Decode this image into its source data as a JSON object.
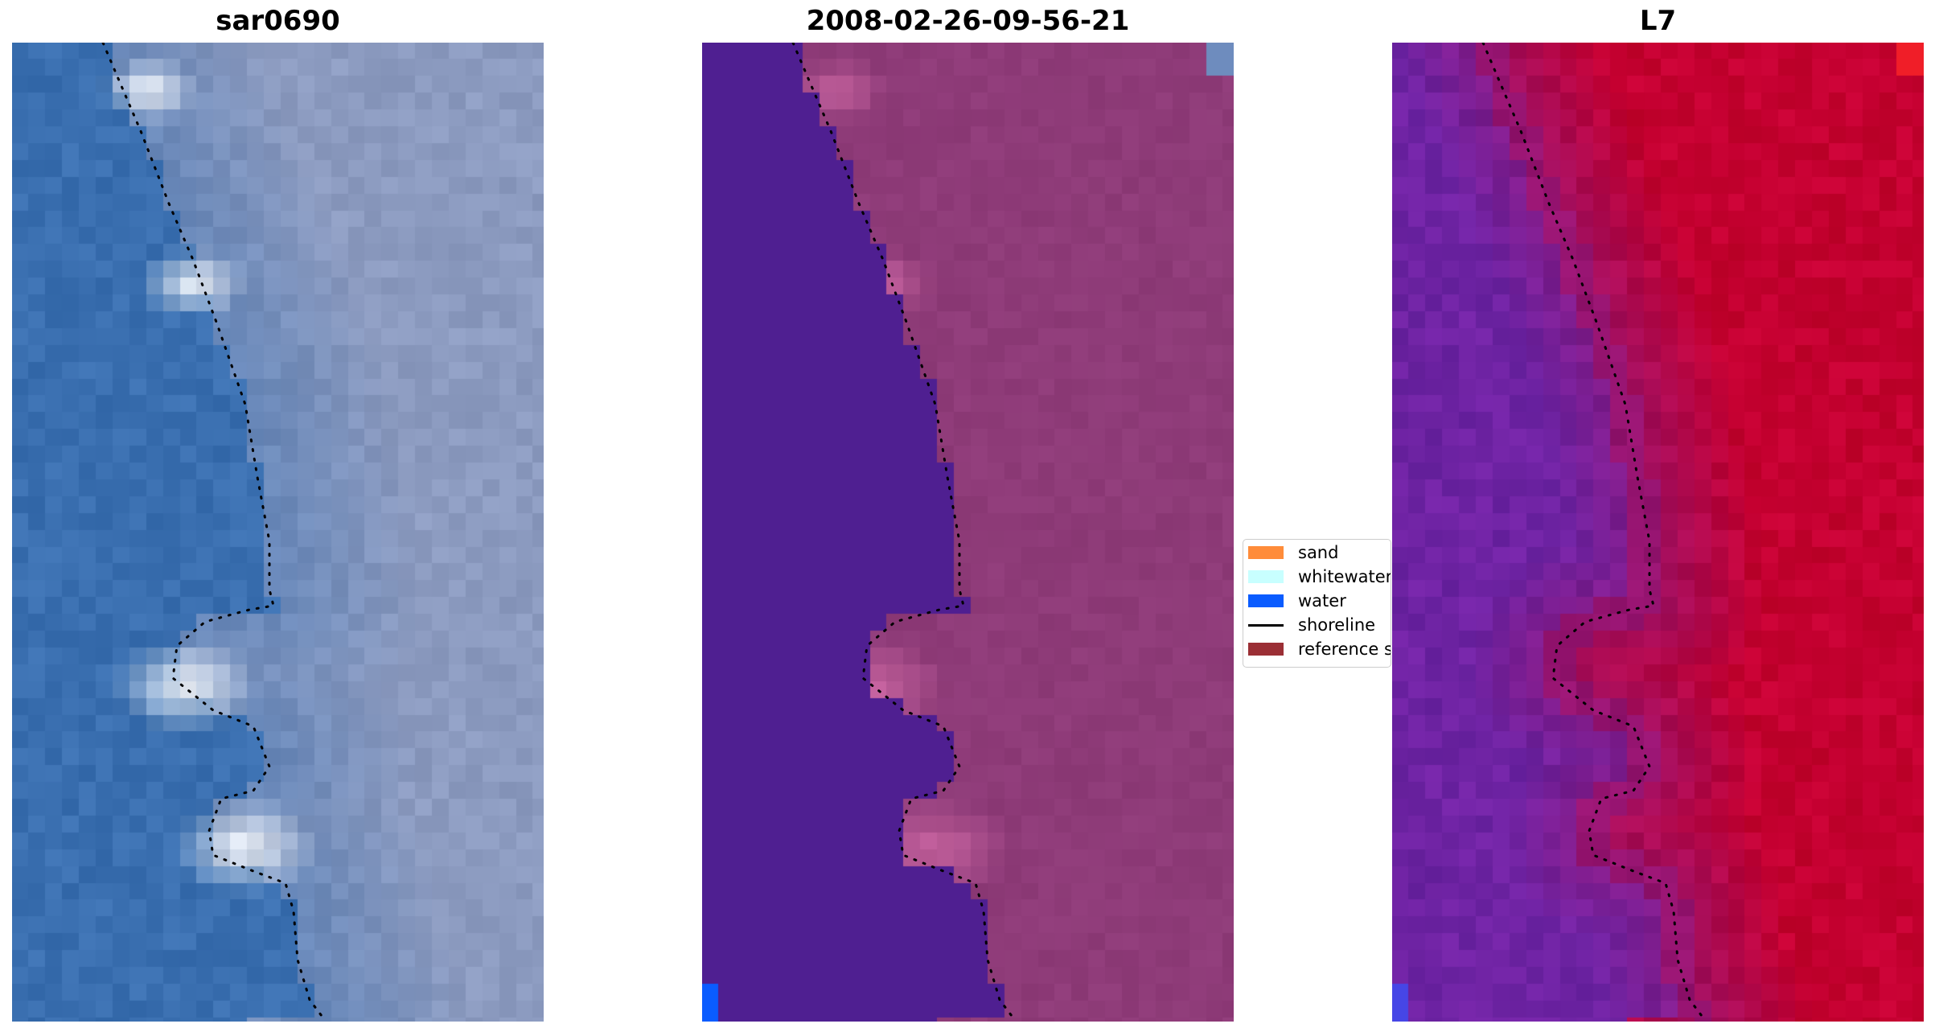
{
  "panels": [
    {
      "title": "sar0690",
      "style": "rgb"
    },
    {
      "title": "2008-02-26-09-56-21",
      "style": "classified"
    },
    {
      "title": "L7",
      "style": "index"
    }
  ],
  "legend": {
    "items": [
      {
        "label": "sand",
        "color": "#ff8c3a",
        "kind": "patch"
      },
      {
        "label": "whitewater",
        "color": "#c8ffff",
        "kind": "patch"
      },
      {
        "label": "water",
        "color": "#0a5cff",
        "kind": "patch"
      },
      {
        "label": "shoreline",
        "color": "#000000",
        "kind": "line"
      },
      {
        "label": "reference shoreline",
        "color": "#9b2f35",
        "kind": "patch"
      }
    ]
  },
  "colors": {
    "ocean_blue": "#3a6fb0",
    "land_grey": "#8c9bc0",
    "water_class": "#4f1f91",
    "land_class": "#8e3b78",
    "index_low": "#6e23a3",
    "index_high": "#c40030",
    "corner_blue": "#0a5cff"
  }
}
